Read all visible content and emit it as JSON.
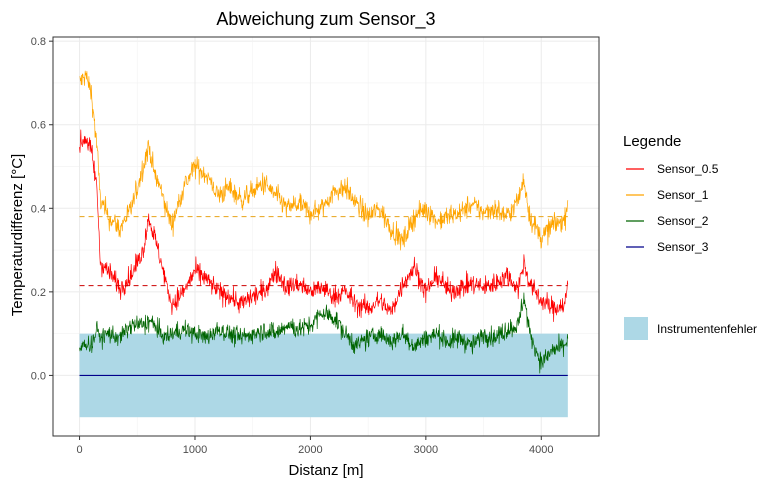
{
  "chart_data": {
    "type": "line",
    "title": "Abweichung zum Sensor_3",
    "xlabel": "Distanz [m]",
    "ylabel": "Temperaturdifferenz [°C]",
    "xlim": [
      -230,
      4500
    ],
    "ylim": [
      -0.145,
      0.81
    ],
    "x_ticks": [
      0,
      1000,
      2000,
      3000,
      4000
    ],
    "x_tick_labels": [
      "0",
      "1000",
      "2000",
      "3000",
      "4000"
    ],
    "y_ticks": [
      0.0,
      0.2,
      0.4,
      0.6,
      0.8
    ],
    "y_tick_labels": [
      "0.0",
      "0.2",
      "0.4",
      "0.6",
      "0.8"
    ],
    "grid": true,
    "legend": {
      "title": "Legende",
      "placement": "right"
    },
    "series": [
      {
        "name": "Sensor_0.5",
        "color": "#ff0000",
        "x": [
          0,
          50,
          100,
          150,
          180,
          250,
          350,
          450,
          550,
          600,
          650,
          700,
          750,
          800,
          900,
          1000,
          1100,
          1200,
          1300,
          1400,
          1500,
          1600,
          1700,
          1800,
          1900,
          2000,
          2100,
          2200,
          2300,
          2400,
          2500,
          2600,
          2700,
          2800,
          2900,
          3000,
          3100,
          3200,
          3300,
          3400,
          3500,
          3600,
          3700,
          3800,
          3850,
          3900,
          4000,
          4100,
          4200,
          4230
        ],
        "y": [
          0.55,
          0.57,
          0.54,
          0.45,
          0.27,
          0.25,
          0.21,
          0.24,
          0.3,
          0.38,
          0.33,
          0.28,
          0.22,
          0.17,
          0.2,
          0.25,
          0.23,
          0.2,
          0.19,
          0.17,
          0.19,
          0.2,
          0.25,
          0.21,
          0.22,
          0.2,
          0.21,
          0.19,
          0.2,
          0.17,
          0.16,
          0.18,
          0.15,
          0.22,
          0.26,
          0.2,
          0.24,
          0.2,
          0.21,
          0.22,
          0.21,
          0.22,
          0.24,
          0.21,
          0.27,
          0.22,
          0.18,
          0.16,
          0.17,
          0.21
        ]
      },
      {
        "name": "Sensor_1",
        "color": "#ffa500",
        "x": [
          0,
          50,
          100,
          150,
          180,
          250,
          350,
          450,
          550,
          600,
          650,
          700,
          750,
          800,
          900,
          1000,
          1100,
          1200,
          1300,
          1400,
          1500,
          1600,
          1700,
          1800,
          1900,
          2000,
          2100,
          2200,
          2300,
          2400,
          2500,
          2600,
          2700,
          2800,
          2900,
          3000,
          3100,
          3200,
          3300,
          3400,
          3500,
          3600,
          3700,
          3800,
          3850,
          3900,
          4000,
          4100,
          4200,
          4230
        ],
        "y": [
          0.7,
          0.72,
          0.68,
          0.55,
          0.42,
          0.38,
          0.35,
          0.4,
          0.5,
          0.55,
          0.48,
          0.45,
          0.4,
          0.36,
          0.45,
          0.5,
          0.48,
          0.43,
          0.45,
          0.42,
          0.44,
          0.46,
          0.43,
          0.4,
          0.41,
          0.39,
          0.4,
          0.44,
          0.45,
          0.41,
          0.38,
          0.4,
          0.35,
          0.32,
          0.38,
          0.4,
          0.37,
          0.38,
          0.39,
          0.41,
          0.39,
          0.4,
          0.38,
          0.42,
          0.47,
          0.38,
          0.33,
          0.36,
          0.37,
          0.42
        ]
      },
      {
        "name": "Sensor_2",
        "color": "#006400",
        "x": [
          0,
          50,
          100,
          150,
          180,
          250,
          350,
          450,
          550,
          600,
          650,
          700,
          750,
          800,
          900,
          1000,
          1100,
          1200,
          1300,
          1400,
          1500,
          1600,
          1700,
          1800,
          1900,
          2000,
          2100,
          2200,
          2300,
          2400,
          2500,
          2600,
          2700,
          2800,
          2900,
          3000,
          3100,
          3200,
          3300,
          3400,
          3500,
          3600,
          3700,
          3800,
          3850,
          3900,
          4000,
          4100,
          4200,
          4230
        ],
        "y": [
          0.06,
          0.08,
          0.07,
          0.11,
          0.09,
          0.1,
          0.09,
          0.12,
          0.12,
          0.13,
          0.12,
          0.1,
          0.09,
          0.1,
          0.11,
          0.1,
          0.09,
          0.11,
          0.1,
          0.09,
          0.1,
          0.11,
          0.1,
          0.12,
          0.11,
          0.12,
          0.15,
          0.14,
          0.1,
          0.07,
          0.09,
          0.1,
          0.08,
          0.1,
          0.07,
          0.09,
          0.1,
          0.08,
          0.09,
          0.07,
          0.1,
          0.09,
          0.11,
          0.12,
          0.19,
          0.1,
          0.03,
          0.06,
          0.07,
          0.09
        ]
      },
      {
        "name": "Sensor_3",
        "color": "#00008b",
        "x": [
          0,
          4230
        ],
        "y": [
          0,
          0
        ]
      }
    ],
    "reference_lines": [
      {
        "series": "Sensor_0.5",
        "y": 0.215,
        "style": "dashed",
        "color": "#cc0000"
      },
      {
        "series": "Sensor_1",
        "y": 0.38,
        "style": "dashed",
        "color": "#e8a317"
      }
    ],
    "band": {
      "name": "Instrumentenfehler",
      "color": "#add8e6",
      "x": [
        0,
        4230
      ],
      "y": [
        -0.1,
        0.1
      ]
    }
  }
}
